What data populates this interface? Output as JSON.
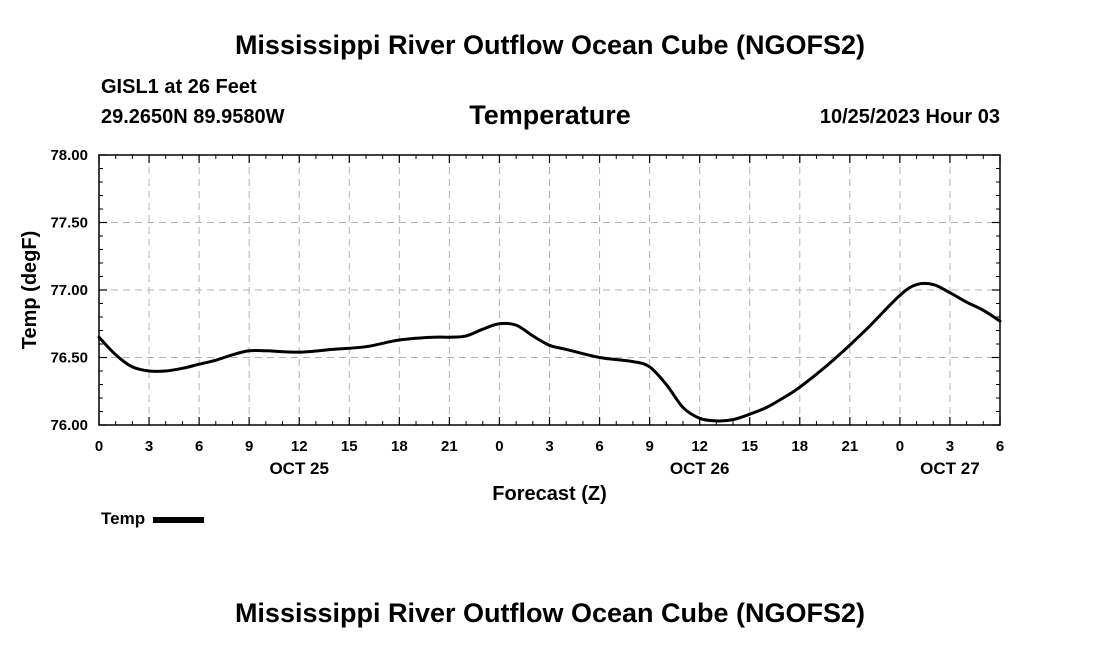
{
  "header": {
    "title": "Mississippi River Outflow Ocean Cube (NGOFS2)",
    "station": "GISL1 at 26 Feet",
    "coords": "29.2650N  89.9580W",
    "variable": "Temperature",
    "datetime": "10/25/2023 Hour 03"
  },
  "footer": {
    "title": "Mississippi River Outflow Ocean Cube (NGOFS2)"
  },
  "legend": {
    "label": "Temp"
  },
  "chart_data": {
    "type": "line",
    "title": "Temperature",
    "xlabel": "Forecast (Z)",
    "ylabel": "Temp (degF)",
    "ylim": [
      76.0,
      78.0
    ],
    "xlim": [
      0,
      54
    ],
    "y_ticks": [
      "76.00",
      "76.50",
      "77.00",
      "77.50",
      "78.00"
    ],
    "x_tick_labels": [
      "0",
      "3",
      "6",
      "9",
      "12",
      "15",
      "18",
      "21",
      "0",
      "3",
      "6",
      "9",
      "12",
      "15",
      "18",
      "21",
      "0",
      "3",
      "6"
    ],
    "date_labels": [
      {
        "label": "OCT 25",
        "hour": 12
      },
      {
        "label": "OCT 26",
        "hour": 36
      },
      {
        "label": "OCT 27",
        "hour": 51
      }
    ],
    "grid": true,
    "series": [
      {
        "name": "Temp",
        "x": [
          0,
          1,
          2,
          3,
          4,
          5,
          6,
          7,
          8,
          9,
          10,
          12,
          14,
          16,
          18,
          20,
          21,
          22,
          23,
          24,
          25,
          26,
          27,
          28,
          30,
          32,
          33,
          34,
          35,
          36,
          37,
          38,
          39,
          40,
          41,
          42,
          44,
          46,
          48,
          49,
          50,
          51,
          52,
          53,
          54
        ],
        "values": [
          76.65,
          76.52,
          76.43,
          76.4,
          76.4,
          76.42,
          76.45,
          76.48,
          76.52,
          76.55,
          76.55,
          76.54,
          76.56,
          76.58,
          76.63,
          76.65,
          76.65,
          76.66,
          76.71,
          76.75,
          76.74,
          76.66,
          76.59,
          76.56,
          76.5,
          76.47,
          76.43,
          76.3,
          76.13,
          76.05,
          76.03,
          76.04,
          76.08,
          76.13,
          76.2,
          76.28,
          76.48,
          76.71,
          76.96,
          77.04,
          77.04,
          76.98,
          76.91,
          76.85,
          76.77
        ]
      }
    ]
  }
}
